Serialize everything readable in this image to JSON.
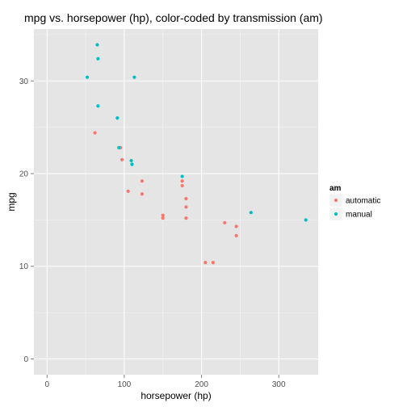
{
  "chart_data": {
    "type": "scatter",
    "title": "mpg vs. horsepower (hp), color-coded by transmission (am)",
    "xlabel": "horsepower (hp)",
    "ylabel": "mpg",
    "xlim": [
      -17,
      351
    ],
    "ylim": [
      -1.7,
      35.6
    ],
    "xticks": [
      0,
      100,
      200,
      300
    ],
    "yticks": [
      0,
      10,
      20,
      30
    ],
    "grid": true,
    "legend": {
      "title": "am",
      "placement": "right"
    },
    "series": [
      {
        "name": "automatic",
        "color": "#F8766D",
        "points": [
          {
            "x": 62,
            "y": 24.4
          },
          {
            "x": 95,
            "y": 22.8
          },
          {
            "x": 97,
            "y": 21.5
          },
          {
            "x": 105,
            "y": 18.1
          },
          {
            "x": 123,
            "y": 19.2
          },
          {
            "x": 123,
            "y": 17.8
          },
          {
            "x": 150,
            "y": 15.5
          },
          {
            "x": 150,
            "y": 15.2
          },
          {
            "x": 175,
            "y": 19.2
          },
          {
            "x": 175,
            "y": 18.7
          },
          {
            "x": 180,
            "y": 17.3
          },
          {
            "x": 180,
            "y": 16.4
          },
          {
            "x": 180,
            "y": 15.2
          },
          {
            "x": 205,
            "y": 10.4
          },
          {
            "x": 215,
            "y": 10.4
          },
          {
            "x": 230,
            "y": 14.7
          },
          {
            "x": 245,
            "y": 14.3
          },
          {
            "x": 245,
            "y": 13.3
          }
        ]
      },
      {
        "name": "manual",
        "color": "#00BFC4",
        "points": [
          {
            "x": 52,
            "y": 30.4
          },
          {
            "x": 65,
            "y": 33.9
          },
          {
            "x": 66,
            "y": 32.4
          },
          {
            "x": 66,
            "y": 27.3
          },
          {
            "x": 91,
            "y": 26.0
          },
          {
            "x": 93,
            "y": 22.8
          },
          {
            "x": 109,
            "y": 21.4
          },
          {
            "x": 110,
            "y": 21.0
          },
          {
            "x": 110,
            "y": 21.0
          },
          {
            "x": 113,
            "y": 30.4
          },
          {
            "x": 175,
            "y": 19.7
          },
          {
            "x": 264,
            "y": 15.8
          },
          {
            "x": 335,
            "y": 15.0
          }
        ]
      }
    ]
  }
}
